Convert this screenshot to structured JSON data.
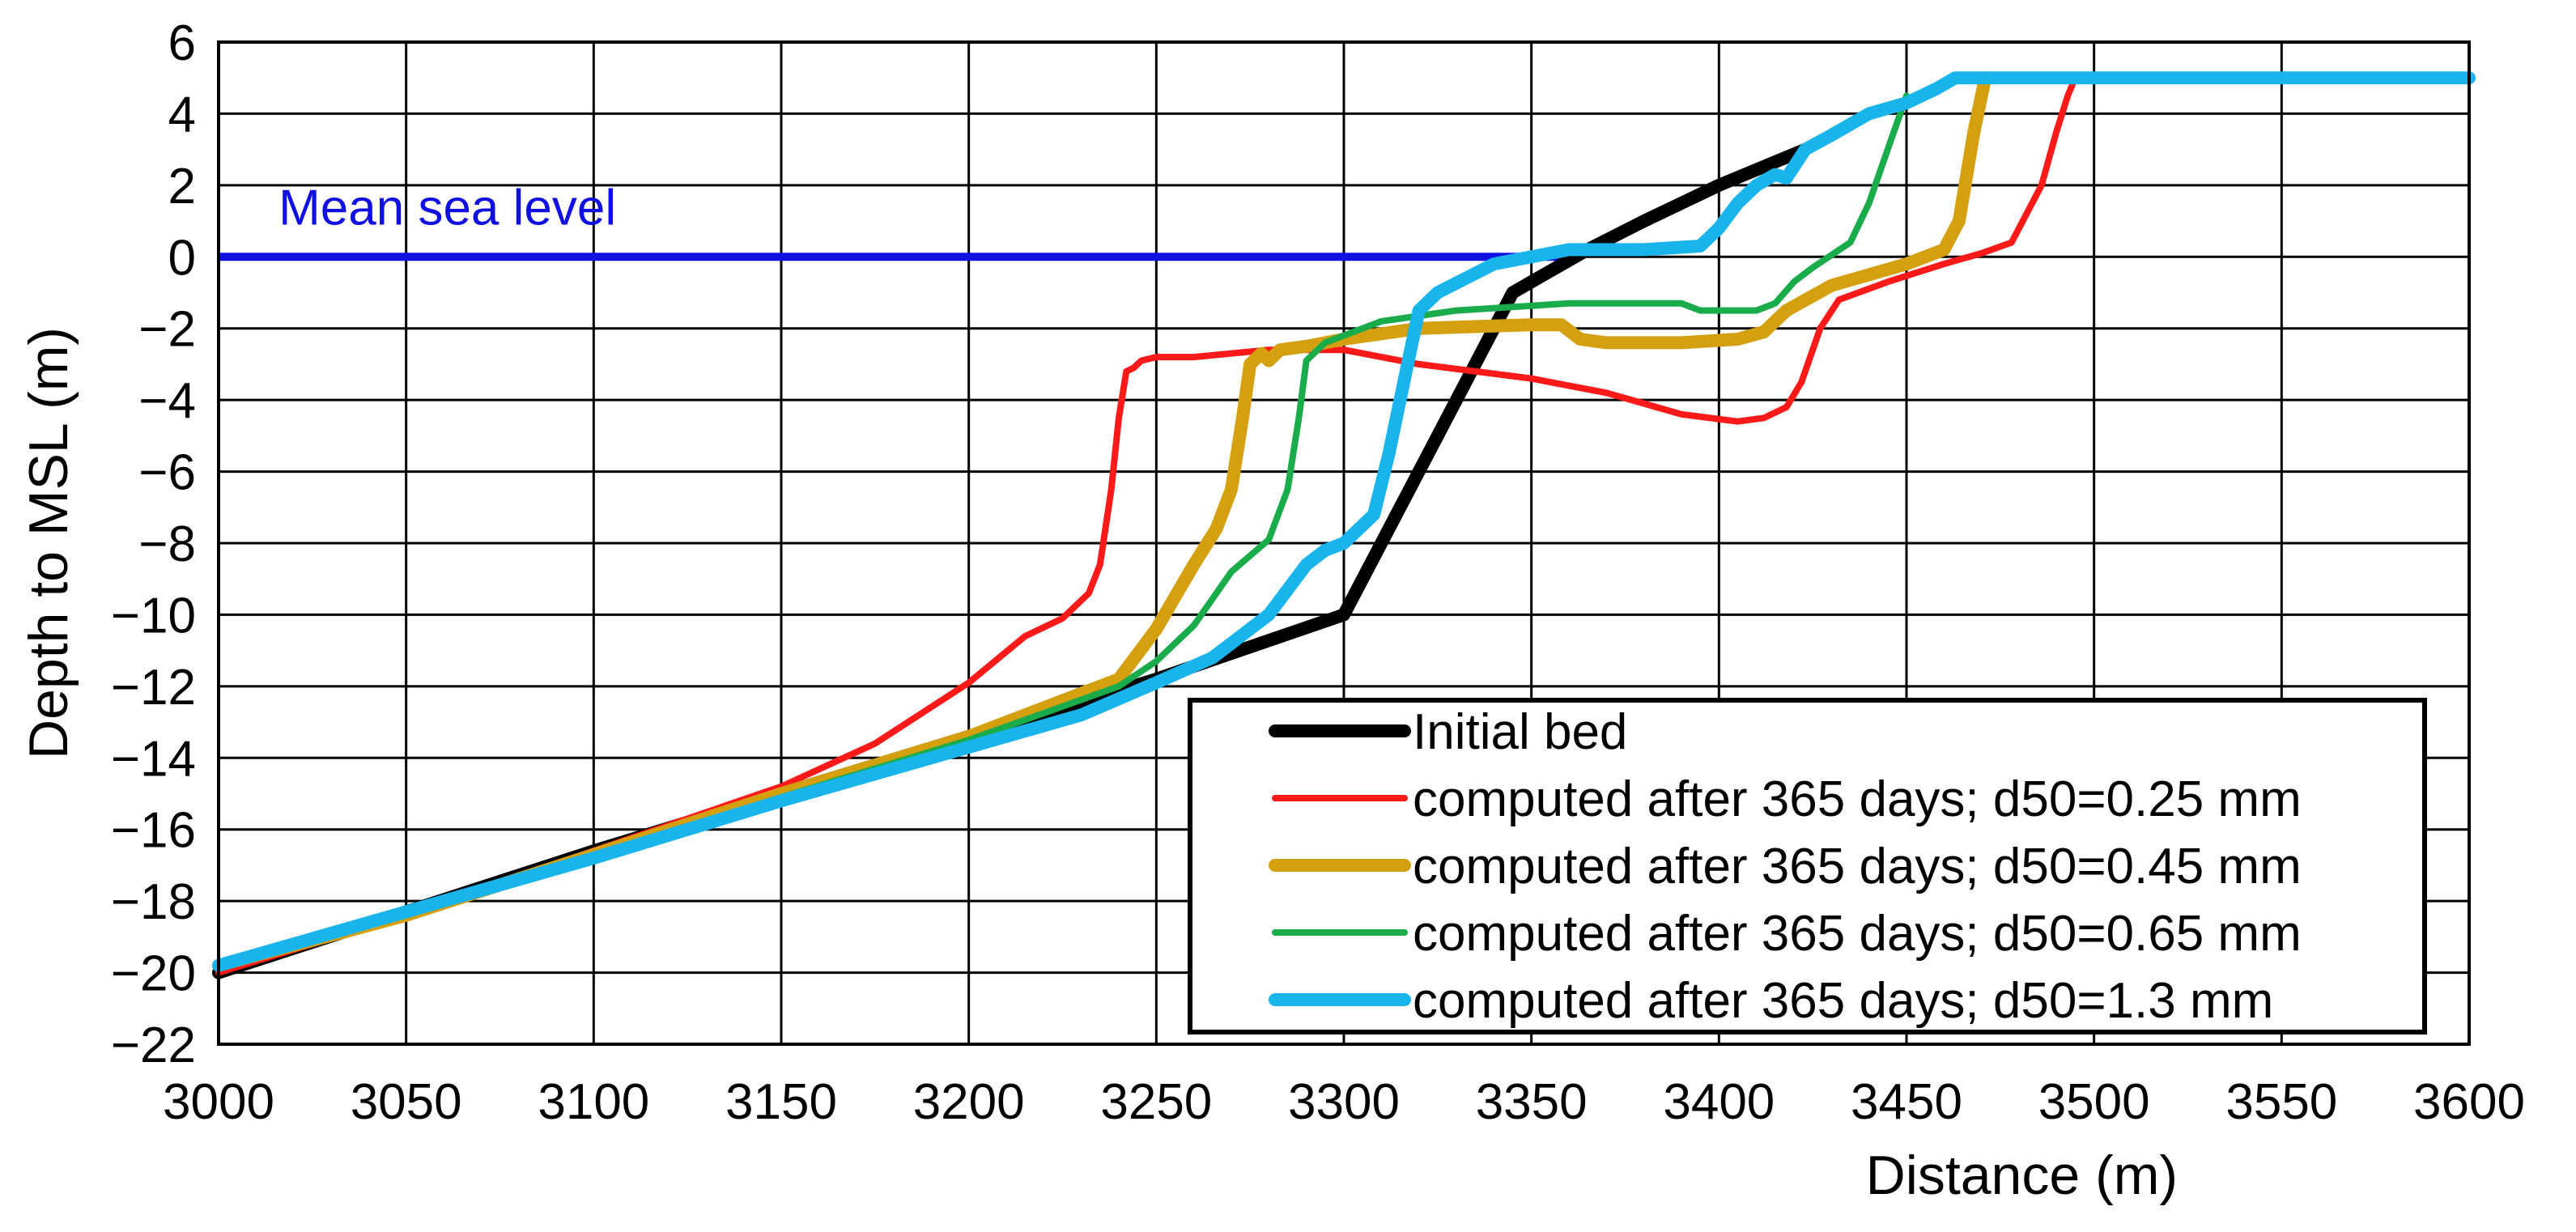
{
  "chart_data": {
    "type": "line",
    "title": "",
    "xlabel": "Distance (m)",
    "ylabel": "Depth to MSL (m)",
    "xlim": [
      3000,
      3600
    ],
    "ylim": [
      -22,
      6
    ],
    "grid": true,
    "x_ticks": [
      3000,
      3050,
      3100,
      3150,
      3200,
      3250,
      3300,
      3350,
      3400,
      3450,
      3500,
      3550,
      3600
    ],
    "x_tick_labels": [
      "3000",
      "3050",
      "3100",
      "3150",
      "3200",
      "3250",
      "3300",
      "3350",
      "3400",
      "3450",
      "3500",
      "3550",
      "3600"
    ],
    "y_ticks": [
      6,
      4,
      2,
      0,
      -2,
      -4,
      -6,
      -8,
      -10,
      -12,
      -14,
      -16,
      -18,
      -20,
      -22
    ],
    "y_tick_labels": [
      "6",
      "4",
      "2",
      "0",
      "−2",
      "−4",
      "−6",
      "−8",
      "−10",
      "−12",
      "−14",
      "−16",
      "−18",
      "−20",
      "−22"
    ],
    "annotation": {
      "text": "Mean sea level",
      "x": 3016,
      "y": 0.9,
      "color": "#1010e0"
    },
    "reference_line": {
      "name": "Mean sea level",
      "y": 0,
      "x": [
        3000,
        3363
      ],
      "color": "#1010e0"
    },
    "legend_position": "bottom-right",
    "series": [
      {
        "name": "Initial bed",
        "color": "#000000",
        "weight": "bold",
        "x": [
          3000,
          3050,
          3100,
          3150,
          3200,
          3250,
          3300,
          3345,
          3365,
          3380,
          3400,
          3423
        ],
        "y": [
          -20.0,
          -18.3,
          -16.6,
          -15.0,
          -13.4,
          -11.8,
          -10.0,
          -1.0,
          0.2,
          1.0,
          2.0,
          3.0
        ]
      },
      {
        "name": "computed after 365 days; d50=0.25 mm",
        "color": "#ff1a1a",
        "weight": "normal",
        "x": [
          3000,
          3050,
          3100,
          3150,
          3175,
          3200,
          3215,
          3225,
          3232,
          3235,
          3238,
          3240,
          3242,
          3244,
          3246,
          3250,
          3260,
          3280,
          3300,
          3320,
          3350,
          3370,
          3390,
          3405,
          3412,
          3418,
          3422,
          3427,
          3432,
          3445,
          3460,
          3470,
          3478,
          3486,
          3490,
          3493,
          3495
        ],
        "y": [
          -20.0,
          -18.4,
          -16.6,
          -14.8,
          -13.6,
          -11.9,
          -10.6,
          -10.1,
          -9.4,
          -8.6,
          -6.5,
          -4.5,
          -3.2,
          -3.1,
          -2.9,
          -2.8,
          -2.8,
          -2.6,
          -2.6,
          -3.0,
          -3.4,
          -3.8,
          -4.4,
          -4.6,
          -4.5,
          -4.2,
          -3.5,
          -2.0,
          -1.2,
          -0.7,
          -0.2,
          0.1,
          0.4,
          2.0,
          3.5,
          4.5,
          5.0
        ]
      },
      {
        "name": "computed after 365 days; d50=0.45 mm",
        "color": "#d4a010",
        "weight": "bold",
        "x": [
          3000,
          3050,
          3100,
          3150,
          3200,
          3240,
          3250,
          3260,
          3266,
          3270,
          3273,
          3275,
          3278,
          3280,
          3283,
          3290,
          3300,
          3320,
          3350,
          3358,
          3363,
          3370,
          3390,
          3405,
          3412,
          3418,
          3430,
          3450,
          3460,
          3464,
          3468,
          3471
        ],
        "y": [
          -19.8,
          -18.4,
          -16.7,
          -15.0,
          -13.4,
          -11.8,
          -10.4,
          -8.6,
          -7.6,
          -6.5,
          -4.5,
          -3.0,
          -2.7,
          -2.9,
          -2.6,
          -2.5,
          -2.3,
          -2.0,
          -1.9,
          -1.9,
          -2.3,
          -2.4,
          -2.4,
          -2.3,
          -2.1,
          -1.5,
          -0.8,
          -0.2,
          0.2,
          1.0,
          3.5,
          5.0
        ]
      },
      {
        "name": "computed after 365 days; d50=0.65 mm",
        "color": "#1aac4a",
        "weight": "normal",
        "x": [
          3000,
          3050,
          3100,
          3150,
          3200,
          3240,
          3250,
          3260,
          3270,
          3280,
          3285,
          3288,
          3290,
          3295,
          3310,
          3330,
          3360,
          3390,
          3395,
          3400,
          3410,
          3415,
          3420,
          3425,
          3435,
          3440,
          3445,
          3450
        ],
        "y": [
          -19.8,
          -18.4,
          -16.8,
          -15.1,
          -13.5,
          -12.0,
          -11.3,
          -10.3,
          -8.8,
          -7.9,
          -6.5,
          -4.5,
          -2.9,
          -2.4,
          -1.8,
          -1.5,
          -1.3,
          -1.3,
          -1.5,
          -1.5,
          -1.5,
          -1.3,
          -0.7,
          -0.3,
          0.4,
          1.5,
          3.0,
          4.5
        ]
      },
      {
        "name": "computed after 365 days; d50=1.3 mm",
        "color": "#19b4ec",
        "weight": "bold",
        "x": [
          3000,
          3050,
          3100,
          3150,
          3200,
          3230,
          3250,
          3265,
          3280,
          3290,
          3295,
          3300,
          3308,
          3312,
          3316,
          3320,
          3325,
          3340,
          3360,
          3380,
          3395,
          3400,
          3405,
          3410,
          3415,
          3418,
          3423,
          3430,
          3440,
          3450,
          3458,
          3463,
          3480,
          3550,
          3600
        ],
        "y": [
          -19.8,
          -18.3,
          -16.8,
          -15.2,
          -13.7,
          -12.8,
          -11.9,
          -11.2,
          -10.0,
          -8.6,
          -8.2,
          -8.0,
          -7.2,
          -5.5,
          -3.5,
          -1.5,
          -1.0,
          -0.2,
          0.2,
          0.2,
          0.3,
          0.8,
          1.5,
          2.0,
          2.3,
          2.2,
          3.0,
          3.4,
          4.0,
          4.3,
          4.7,
          5.0,
          5.0,
          5.0,
          5.0
        ]
      }
    ]
  }
}
